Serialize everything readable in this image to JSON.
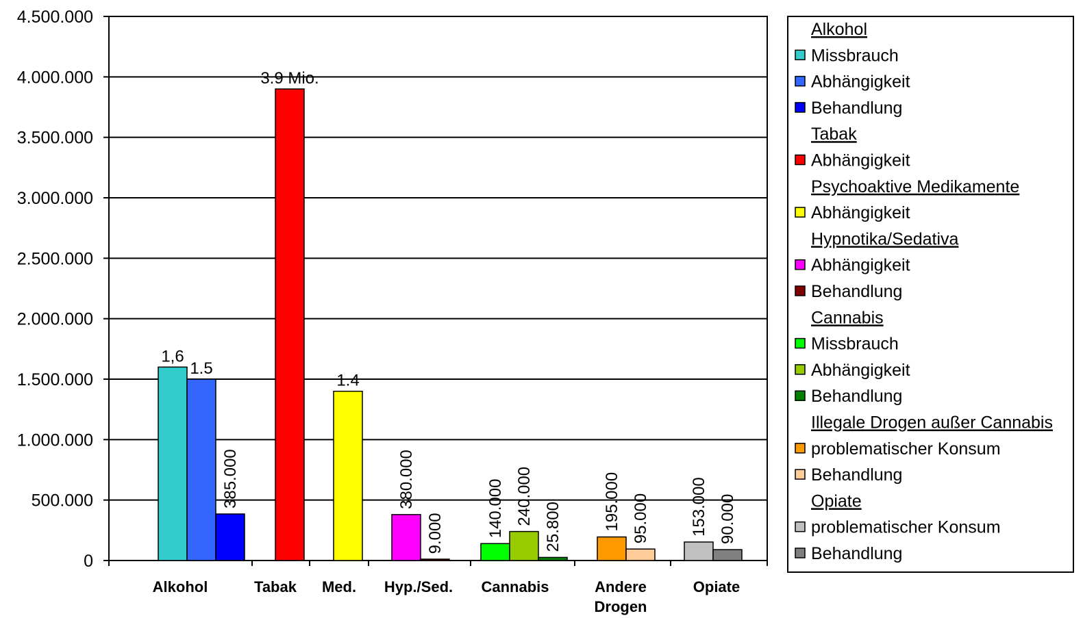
{
  "chart_data": {
    "type": "bar",
    "ylim": [
      0,
      4500000
    ],
    "yticks": [
      "0",
      "500.000",
      "1.000.000",
      "1.500.000",
      "2.000.000",
      "2.500.000",
      "3.000.000",
      "3.500.000",
      "4.000.000",
      "4.500.000"
    ],
    "ytick_values": [
      0,
      500000,
      1000000,
      1500000,
      2000000,
      2500000,
      3000000,
      3500000,
      4000000,
      4500000
    ],
    "grid": true,
    "legend_position": "right",
    "groups": [
      {
        "label": "Alkohol",
        "bars": [
          {
            "series": "Alkohol – Missbrauch",
            "value": 1600000,
            "label": "1,6",
            "label_rotated": false
          },
          {
            "series": "Alkohol – Abhängigkeit",
            "value": 1500000,
            "label": "1.5",
            "label_rotated": false
          },
          {
            "series": "Alkohol – Behandlung",
            "value": 385000,
            "label": "385.000",
            "label_rotated": true
          }
        ]
      },
      {
        "label": "Tabak",
        "bars": [
          {
            "series": "Tabak – Abhängigkeit",
            "value": 3900000,
            "label": "3.9 Mio.",
            "label_rotated": false
          }
        ]
      },
      {
        "label": "Med.",
        "bars": [
          {
            "series": "Psychoaktive Medikamente – Abhängigkeit",
            "value": 1400000,
            "label": "1.4",
            "label_rotated": false
          }
        ]
      },
      {
        "label": "Hyp./Sed.",
        "bars": [
          {
            "series": "Hypnotika/Sedativa – Abhängigkeit",
            "value": 380000,
            "label": "380.000",
            "label_rotated": true
          },
          {
            "series": "Hypnotika/Sedativa – Behandlung",
            "value": 9000,
            "label": "9.000",
            "label_rotated": true
          }
        ]
      },
      {
        "label": "Cannabis",
        "bars": [
          {
            "series": "Cannabis – Missbrauch",
            "value": 140000,
            "label": "140.000",
            "label_rotated": true
          },
          {
            "series": "Cannabis – Abhängigkeit",
            "value": 240000,
            "label": "240.000",
            "label_rotated": true
          },
          {
            "series": "Cannabis – Behandlung",
            "value": 25800,
            "label": "25.800",
            "label_rotated": true
          }
        ]
      },
      {
        "label": "Andere Drogen",
        "label_lines": [
          "Andere",
          "Drogen"
        ],
        "bars": [
          {
            "series": "Illegale Drogen außer Cannabis – problematischer Konsum",
            "value": 195000,
            "label": "195.000",
            "label_rotated": true
          },
          {
            "series": "Illegale Drogen außer Cannabis – Behandlung",
            "value": 95000,
            "label": "95.000",
            "label_rotated": true
          }
        ]
      },
      {
        "label": "Opiate",
        "bars": [
          {
            "series": "Opiate – problematischer Konsum",
            "value": 153000,
            "label": "153.000",
            "label_rotated": true
          },
          {
            "series": "Opiate – Behandlung",
            "value": 90000,
            "label": "90.000",
            "label_rotated": true
          }
        ]
      }
    ],
    "series_colors": {
      "Alkohol – Missbrauch": "#33CCCC",
      "Alkohol – Abhängigkeit": "#3366FF",
      "Alkohol – Behandlung": "#0000FF",
      "Tabak – Abhängigkeit": "#FF0000",
      "Psychoaktive Medikamente – Abhängigkeit": "#FFFF00",
      "Hypnotika/Sedativa – Abhängigkeit": "#FF00FF",
      "Hypnotika/Sedativa – Behandlung": "#800000",
      "Cannabis – Missbrauch": "#00FF00",
      "Cannabis – Abhängigkeit": "#99CC00",
      "Cannabis – Behandlung": "#008000",
      "Illegale Drogen außer Cannabis – problematischer Konsum": "#FF9900",
      "Illegale Drogen außer Cannabis – Behandlung": "#FFCC99",
      "Opiate – problematischer Konsum": "#C0C0C0",
      "Opiate – Behandlung": "#808080"
    },
    "legend": [
      {
        "text": "Alkohol",
        "header": true
      },
      {
        "text": "Missbrauch",
        "color": "#33CCCC"
      },
      {
        "text": "Abhängigkeit",
        "color": "#3366FF"
      },
      {
        "text": "Behandlung",
        "color": "#0000FF"
      },
      {
        "text": "Tabak",
        "header": true
      },
      {
        "text": "Abhängigkeit",
        "color": "#FF0000"
      },
      {
        "text": "Psychoaktive Medikamente",
        "header": true
      },
      {
        "text": "Abhängigkeit",
        "color": "#FFFF00"
      },
      {
        "text": "Hypnotika/Sedativa",
        "header": true
      },
      {
        "text": "Abhängigkeit",
        "color": "#FF00FF"
      },
      {
        "text": "Behandlung",
        "color": "#800000"
      },
      {
        "text": "Cannabis",
        "header": true
      },
      {
        "text": "Missbrauch",
        "color": "#00FF00"
      },
      {
        "text": "Abhängigkeit",
        "color": "#99CC00"
      },
      {
        "text": "Behandlung",
        "color": "#008000"
      },
      {
        "text": "Illegale Drogen außer Cannabis",
        "header": true
      },
      {
        "text": "problematischer Konsum",
        "color": "#FF9900"
      },
      {
        "text": "Behandlung",
        "color": "#FFCC99"
      },
      {
        "text": "Opiate",
        "header": true
      },
      {
        "text": "problematischer Konsum",
        "color": "#C0C0C0"
      },
      {
        "text": "Behandlung",
        "color": "#808080"
      }
    ]
  }
}
